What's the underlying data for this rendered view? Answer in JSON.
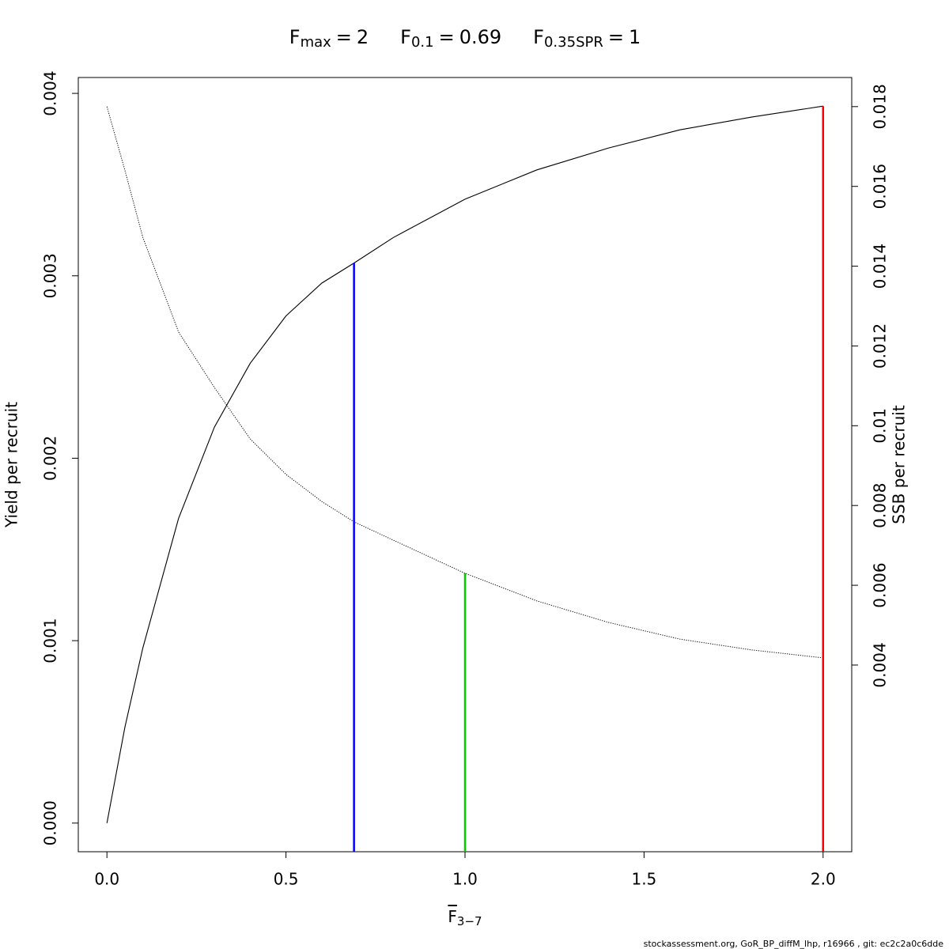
{
  "chart_data": {
    "type": "line",
    "reference_lines": [
      {
        "symbol": "F",
        "subscript": "max",
        "relation": "=",
        "x": 2,
        "color": "#ff0000",
        "top": 0.00393,
        "axis": "y"
      },
      {
        "symbol": "F",
        "subscript": "0.1",
        "relation": "=",
        "x": 0.69,
        "color": "#0000ff",
        "top": 0.00307,
        "axis": "y"
      },
      {
        "symbol": "F",
        "subscript": "0.35SPR",
        "relation": "=",
        "x": 1,
        "color": "#00cd00",
        "top": 0.0063,
        "axis": "y2"
      }
    ],
    "xlabel": {
      "symbol": "F",
      "subscript": "3−7"
    },
    "ylabel": "Yield per recruit",
    "y2label": "SSB per recruit",
    "x": [
      0,
      0.05,
      0.1,
      0.2,
      0.3,
      0.4,
      0.5,
      0.6,
      0.69,
      0.8,
      1.0,
      1.2,
      1.4,
      1.6,
      1.8,
      2.0
    ],
    "series": [
      {
        "name": "Yield per recruit",
        "color": "#000000",
        "dash": "solid",
        "values": [
          0,
          0.000524,
          0.000958,
          0.00167,
          0.00217,
          0.00252,
          0.00278,
          0.00296,
          0.00307,
          0.00321,
          0.00342,
          0.00358,
          0.0037,
          0.0038,
          0.00387,
          0.00393
        ]
      },
      {
        "name": "SSB per recruit",
        "color": "#000000",
        "dash": "dotted",
        "axis": "y2",
        "values": [
          0.018,
          0.01641,
          0.01473,
          0.01235,
          0.01096,
          0.00967,
          0.00878,
          0.0081,
          0.00759,
          0.00713,
          0.0063,
          0.00561,
          0.00507,
          0.00465,
          0.00438,
          0.00418
        ]
      }
    ],
    "xlim": [
      -0.08,
      2.08
    ],
    "xticks": [
      {
        "value": 0,
        "label": "0.0"
      },
      0.5,
      {
        "value": 1,
        "label": "1.0"
      },
      1.5,
      {
        "value": 2,
        "label": "2.0"
      }
    ],
    "ylim": [
      -0.000157,
      0.004087
    ],
    "yticks": [
      {
        "value": 0,
        "label": "0.000"
      },
      0.001,
      0.002,
      0.003,
      0.004
    ],
    "y2lim": [
      -0.00068,
      0.01873
    ],
    "y2ticks": [
      0.004,
      0.006,
      0.008,
      0.01,
      0.012,
      0.014,
      0.016,
      0.018
    ],
    "footer": "stockassessment.org, GoR_BP_diffM_lhp, r16966 , git: ec2c2a0c6dde"
  }
}
